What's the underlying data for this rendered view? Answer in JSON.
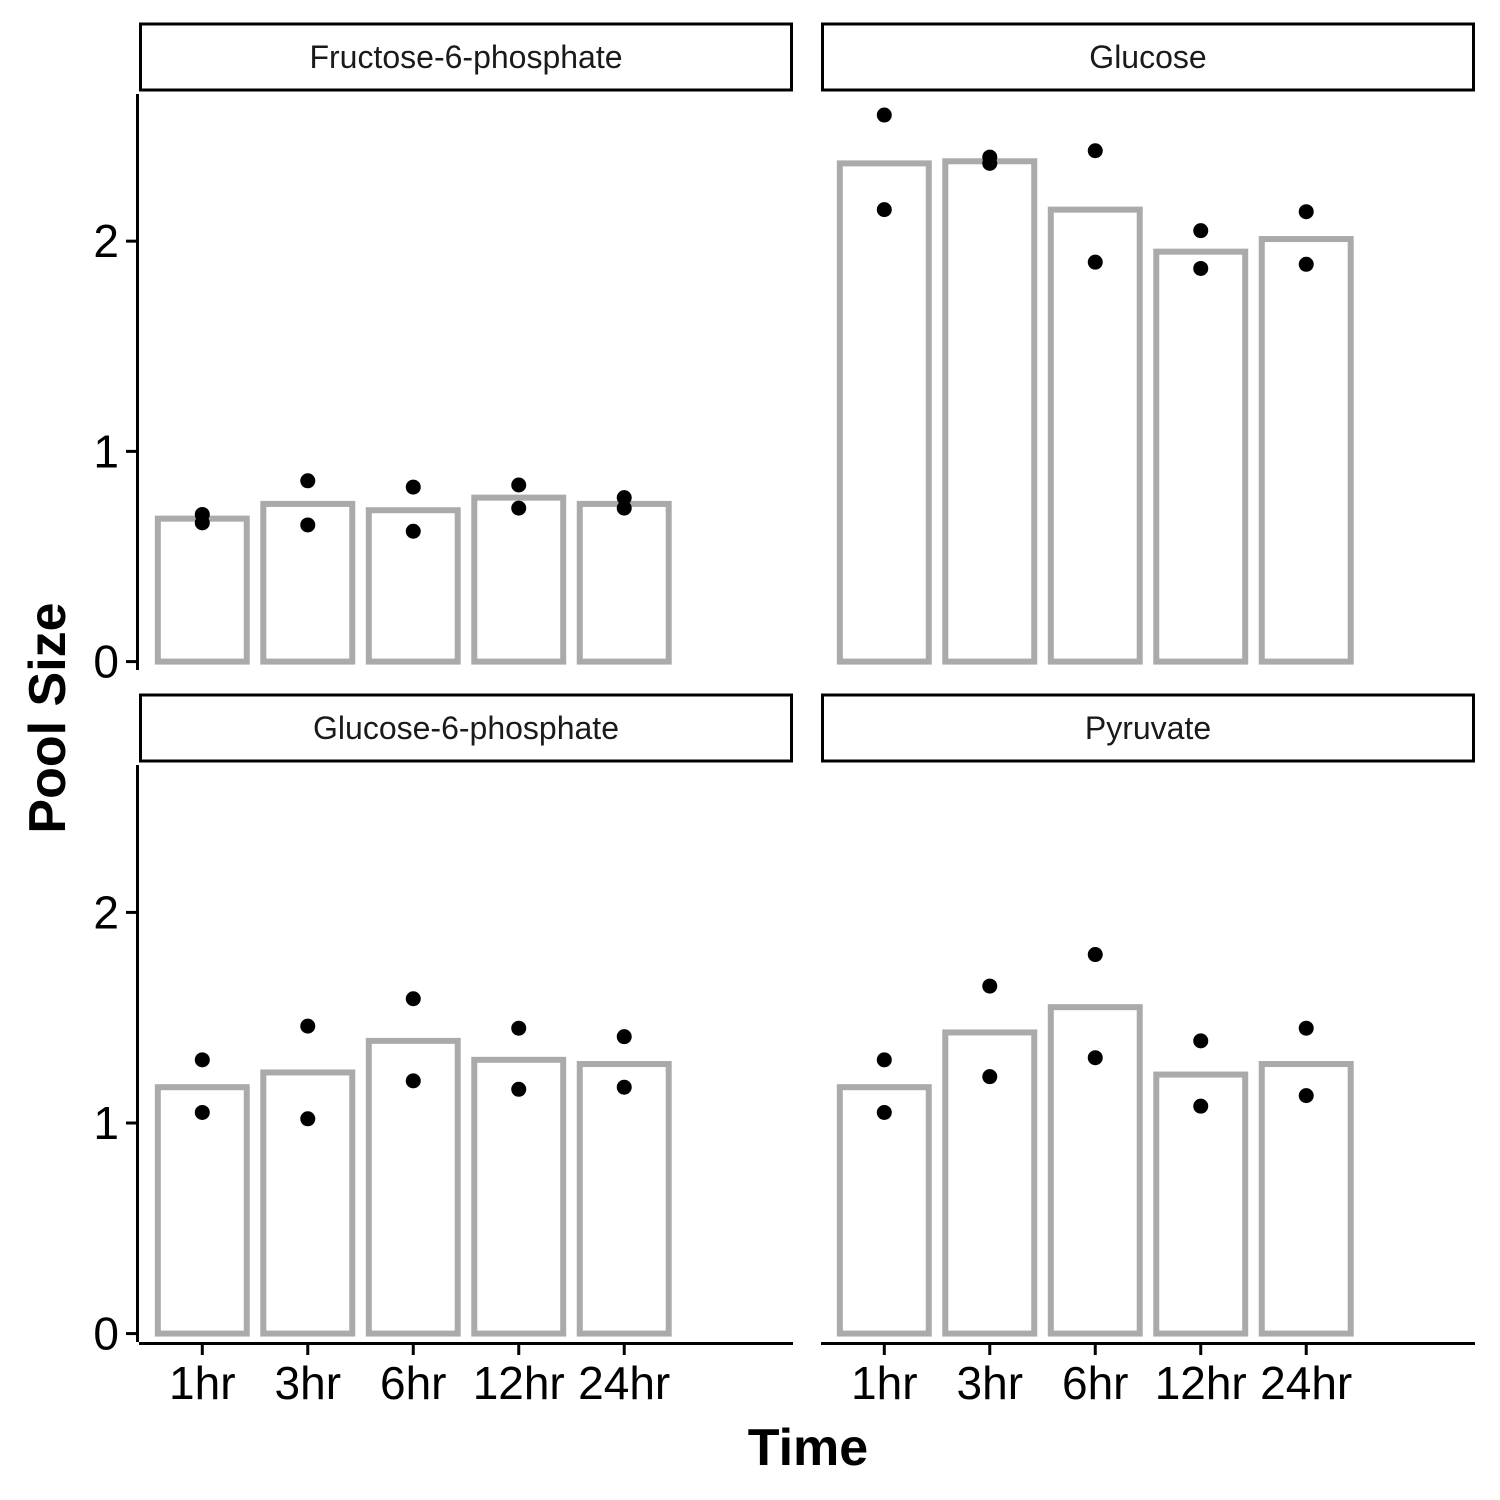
{
  "chart_data": {
    "type": "bar",
    "layout": "facet-wrap 2x2, shared axes",
    "xlabel": "Time",
    "ylabel": "Pool Size",
    "categories": [
      "1hr",
      "3hr",
      "6hr",
      "12hr",
      "24hr"
    ],
    "ylim": [
      -0.04,
      2.7
    ],
    "yticks": [
      0,
      1,
      2
    ],
    "ytick_labels": [
      "0",
      "1",
      "2"
    ],
    "grid": false,
    "legend": "none",
    "colors": {
      "bar_outline": "#aaaaaa",
      "bar_fill": "#ffffff",
      "points": "#000000",
      "strip_border": "#000000",
      "axis": "#000000"
    },
    "panels": [
      {
        "name": "Fructose-6-phosphate",
        "bars": [
          0.68,
          0.75,
          0.72,
          0.78,
          0.75
        ],
        "points": [
          [
            0.7,
            0.66
          ],
          [
            0.86,
            0.65
          ],
          [
            0.83,
            0.62
          ],
          [
            0.84,
            0.73
          ],
          [
            0.78,
            0.73
          ]
        ]
      },
      {
        "name": "Glucose",
        "bars": [
          2.37,
          2.38,
          2.15,
          1.95,
          2.01
        ],
        "points": [
          [
            2.6,
            2.15
          ],
          [
            2.4,
            2.37
          ],
          [
            2.43,
            1.9
          ],
          [
            2.05,
            1.87
          ],
          [
            2.14,
            1.89
          ]
        ]
      },
      {
        "name": "Glucose-6-phosphate",
        "bars": [
          1.17,
          1.24,
          1.39,
          1.3,
          1.28
        ],
        "points": [
          [
            1.3,
            1.05
          ],
          [
            1.46,
            1.02
          ],
          [
            1.59,
            1.2
          ],
          [
            1.45,
            1.16
          ],
          [
            1.41,
            1.17
          ]
        ]
      },
      {
        "name": "Pyruvate",
        "bars": [
          1.17,
          1.43,
          1.55,
          1.23,
          1.28
        ],
        "points": [
          [
            1.3,
            1.05
          ],
          [
            1.65,
            1.22
          ],
          [
            1.8,
            1.31
          ],
          [
            1.39,
            1.08
          ],
          [
            1.45,
            1.13
          ]
        ]
      }
    ]
  }
}
